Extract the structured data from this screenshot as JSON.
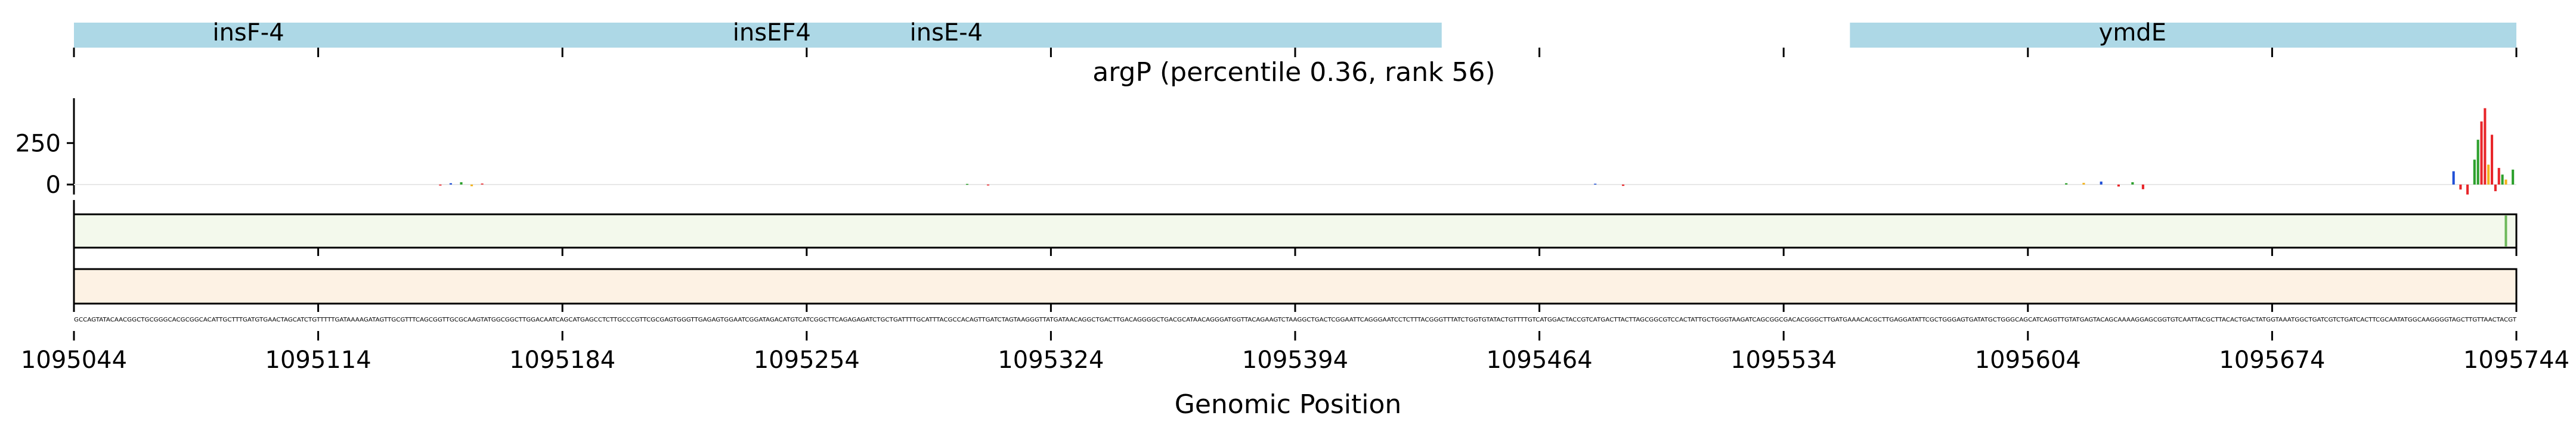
{
  "chart_data": {
    "type": "genome-track",
    "title": "argP (percentile 0.36, rank 56)",
    "xlabel": "Genomic Position",
    "xlim": [
      1095044,
      1095744
    ],
    "x_ticks": [
      1095044,
      1095114,
      1095184,
      1095254,
      1095324,
      1095394,
      1095464,
      1095534,
      1095604,
      1095674,
      1095744
    ],
    "x_tick_labels": [
      "1095044",
      "1095114",
      "1095184",
      "1095254",
      "1095324",
      "1095394",
      "1095464",
      "1095534",
      "1095604",
      "1095674",
      "1095744"
    ],
    "genes": [
      {
        "name": "insF-4",
        "start": 1095044,
        "end": 1095436
      },
      {
        "name": "insEF4",
        "start": 1095044,
        "end": 1095436
      },
      {
        "name": "insE-4",
        "start": 1095044,
        "end": 1095436
      },
      {
        "name": "ymdE",
        "start": 1095553,
        "end": 1095744
      }
    ],
    "gene_label_positions": [
      1095094,
      1095244,
      1095294,
      1095634
    ],
    "signal_track": {
      "ylim": [
        -60,
        520
      ],
      "y_ticks": [
        0,
        250
      ],
      "y_tick_labels": [
        "0",
        "250"
      ],
      "base_colors": {
        "A": "#2ca02c",
        "C": "#1f4fd6",
        "G": "#f2b21c",
        "T": "#e8262a"
      },
      "peaks": [
        {
          "x": 1095149,
          "value": -6,
          "base": "T"
        },
        {
          "x": 1095152,
          "value": 8,
          "base": "C"
        },
        {
          "x": 1095155,
          "value": 14,
          "base": "A"
        },
        {
          "x": 1095158,
          "value": -10,
          "base": "G"
        },
        {
          "x": 1095161,
          "value": 6,
          "base": "T"
        },
        {
          "x": 1095300,
          "value": 4,
          "base": "A"
        },
        {
          "x": 1095306,
          "value": -5,
          "base": "T"
        },
        {
          "x": 1095480,
          "value": 5,
          "base": "C"
        },
        {
          "x": 1095488,
          "value": -8,
          "base": "T"
        },
        {
          "x": 1095615,
          "value": 8,
          "base": "A"
        },
        {
          "x": 1095620,
          "value": 10,
          "base": "G"
        },
        {
          "x": 1095625,
          "value": 18,
          "base": "C"
        },
        {
          "x": 1095630,
          "value": -12,
          "base": "T"
        },
        {
          "x": 1095634,
          "value": 14,
          "base": "A"
        },
        {
          "x": 1095637,
          "value": -28,
          "base": "T"
        },
        {
          "x": 1095726,
          "value": 80,
          "base": "C"
        },
        {
          "x": 1095728,
          "value": -30,
          "base": "T"
        },
        {
          "x": 1095730,
          "value": -60,
          "base": "T"
        },
        {
          "x": 1095732,
          "value": 150,
          "base": "A"
        },
        {
          "x": 1095733,
          "value": 270,
          "base": "A"
        },
        {
          "x": 1095734,
          "value": 380,
          "base": "T"
        },
        {
          "x": 1095735,
          "value": 460,
          "base": "T"
        },
        {
          "x": 1095736,
          "value": 120,
          "base": "G"
        },
        {
          "x": 1095737,
          "value": 300,
          "base": "T"
        },
        {
          "x": 1095738,
          "value": -40,
          "base": "T"
        },
        {
          "x": 1095739,
          "value": 100,
          "base": "T"
        },
        {
          "x": 1095740,
          "value": 60,
          "base": "A"
        },
        {
          "x": 1095741,
          "value": 30,
          "base": "G"
        },
        {
          "x": 1095743,
          "value": 90,
          "base": "A"
        }
      ]
    },
    "heat_tracks": [
      {
        "name": "green-track",
        "fill": "#f3f9ec",
        "highlight": {
          "x": 1095741,
          "color": "#6cb85a"
        }
      },
      {
        "name": "orange-track",
        "fill": "#fdf2e4",
        "highlight": null
      }
    ],
    "sequence": "GCCAGTATACAACGGCTGCGGGCACGCGGCACATTGCTTTGATGTGAACTAGCATCTGTTTTTGATAAAAGATAGTTGCGTTTCAGCGGTTGCGCAAGTATGGCGGCTTGGACAATCAGCATGAGCCTCTTGCCCGTTCGCGAGTGGGTTGAGAGTGGAATCGGATAGACATGTCATCGGCTTCAGAGAGATCTGCTGATTTTGCATTTACGCCACAGTTGATCTAGTAAGGGTTATGATAACAGGCTGACTTGACAGGGGCTGACGCATAACAGGGATGGTTACAGAAGTCTAAGGCTGACTCGGAATTCAGGGAATCCTCTTTACGGGTTTATCTGGTGTATACTGTTTTGTCATGGACTACCGTCATGACTTACTTAGCGGCGTCCACTATTGCTGGGTAAGATCAGCGGCGACACGGGCTTGATGAAACACGCTTGAGGATATTCGCTGGGAGTGATATGCTGGGCAGCATCAGGTTGTATGAGTACAGCAAAAGGAGCGGTGTCAATTACGCTTACACTGACTATGGTAAATGGCTGATCGTCTGATCACTTCGCAATATGGCAAGGGGTAGCTTGTTAACTACGT"
  }
}
